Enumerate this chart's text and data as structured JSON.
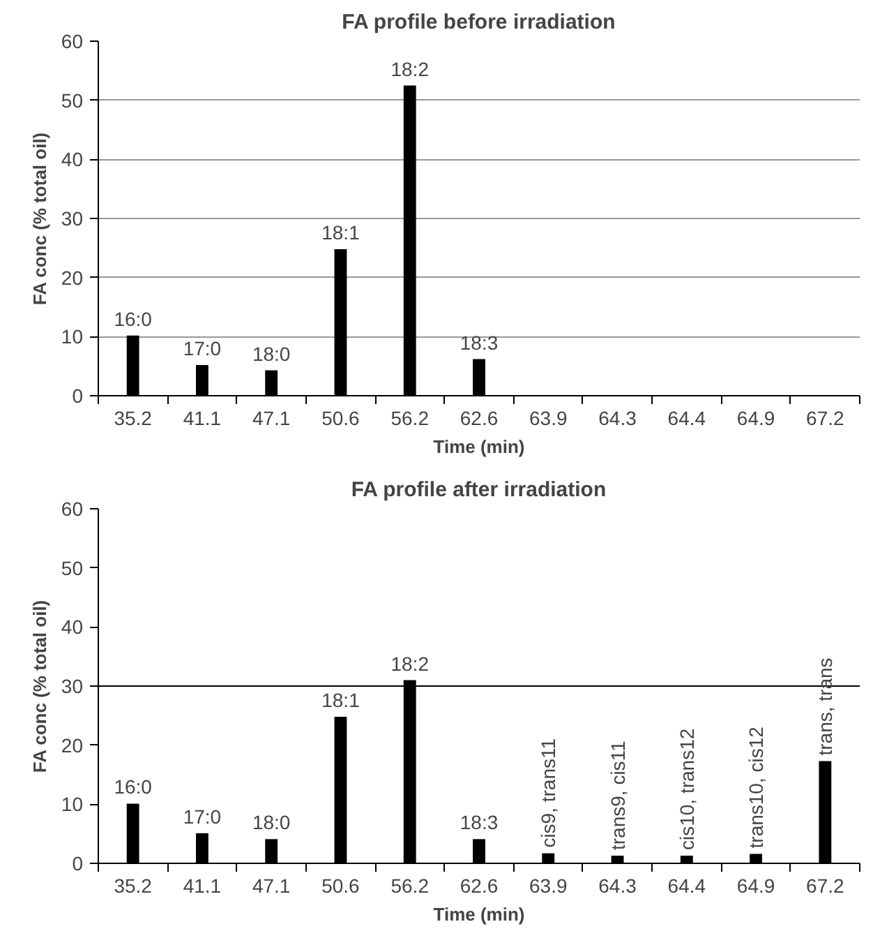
{
  "chart_data": [
    {
      "type": "bar",
      "title": "FA profile before irradiation",
      "xlabel": "Time (min)",
      "ylabel": "FA conc (% total oil)",
      "categories": [
        "35.2",
        "41.1",
        "47.1",
        "50.6",
        "56.2",
        "62.6",
        "63.9",
        "64.3",
        "64.4",
        "64.9",
        "67.2"
      ],
      "values": [
        10.2,
        5.2,
        4.3,
        24.8,
        52.5,
        6.2,
        null,
        null,
        null,
        null,
        null
      ],
      "color": "#000000",
      "ylim": [
        0,
        60
      ],
      "yticks": [
        0,
        10,
        20,
        30,
        40,
        50,
        60
      ],
      "grid": "y",
      "annotations": [
        {
          "text": "16:0",
          "x": "35.2",
          "y": 10.2
        },
        {
          "text": "17:0",
          "x": "41.1",
          "y": 5.2
        },
        {
          "text": "18:0",
          "x": "47.1",
          "y": 4.3
        },
        {
          "text": "18:1",
          "x": "50.6",
          "y": 24.8
        },
        {
          "text": "18:2",
          "x": "56.2",
          "y": 52.5
        },
        {
          "text": "18:3",
          "x": "62.6",
          "y": 6.2
        }
      ]
    },
    {
      "type": "bar",
      "title": "FA profile after irradiation",
      "xlabel": "Time (min)",
      "ylabel": "FA conc (% total oil)",
      "categories": [
        "35.2",
        "41.1",
        "47.1",
        "50.6",
        "56.2",
        "62.6",
        "63.9",
        "64.3",
        "64.4",
        "64.9",
        "67.2"
      ],
      "values": [
        10.1,
        5.1,
        4.1,
        24.8,
        31.0,
        4.1,
        1.7,
        1.3,
        1.3,
        1.6,
        17.3
      ],
      "color": "#000000",
      "ylim": [
        0,
        60
      ],
      "yticks": [
        0,
        10,
        20,
        30,
        40,
        50,
        60
      ],
      "grid": false,
      "ref_lines": [
        {
          "axis": "y",
          "value": 30,
          "color": "#000000"
        }
      ],
      "annotations": [
        {
          "text": "16:0",
          "x": "35.2",
          "y": 10.1
        },
        {
          "text": "17:0",
          "x": "41.1",
          "y": 5.1
        },
        {
          "text": "18:0",
          "x": "47.1",
          "y": 4.1
        },
        {
          "text": "18:1",
          "x": "50.6",
          "y": 24.8
        },
        {
          "text": "18:2",
          "x": "56.2",
          "y": 31.0
        },
        {
          "text": "18:3",
          "x": "62.6",
          "y": 4.1
        },
        {
          "text": "cis9, trans11",
          "x": "63.9",
          "y": 1.7
        },
        {
          "text": "trans9, cis11",
          "x": "64.3",
          "y": 1.3
        },
        {
          "text": "cis10, trans12",
          "x": "64.4",
          "y": 1.3
        },
        {
          "text": "trans10, cis12",
          "x": "64.9",
          "y": 1.6
        },
        {
          "text": "trans, trans",
          "x": "67.2",
          "y": 17.3
        }
      ]
    }
  ]
}
